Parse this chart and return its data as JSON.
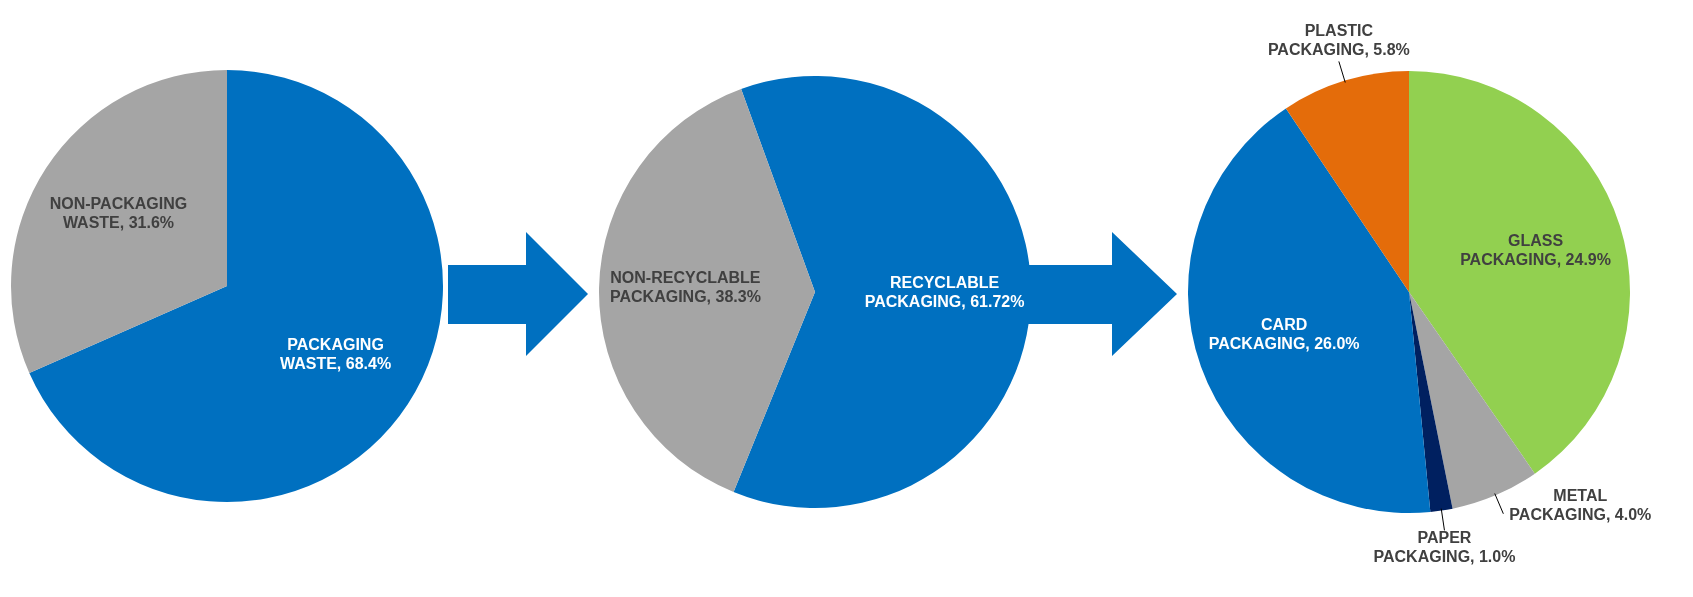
{
  "chart_data": [
    {
      "type": "pie",
      "categories": [
        "PACKAGING WASTE",
        "NON-PACKAGING WASTE"
      ],
      "values": [
        68.4,
        31.6
      ],
      "colors": [
        "#0070c0",
        "#a5a5a5"
      ],
      "value_labels": [
        "68.4%",
        "31.6%"
      ]
    },
    {
      "type": "pie",
      "categories": [
        "RECYCLABLE PACKAGING",
        "NON-RECYCLABLE PACKAGING"
      ],
      "values": [
        61.72,
        38.3
      ],
      "colors": [
        "#0070c0",
        "#a5a5a5"
      ],
      "value_labels": [
        "61.72%",
        "38.3%"
      ]
    },
    {
      "type": "pie",
      "categories": [
        "GLASS PACKAGING",
        "METAL PACKAGING",
        "PAPER PACKAGING",
        "CARD PACKAGING",
        "PLASTIC PACKAGING"
      ],
      "values": [
        24.9,
        4.0,
        1.0,
        26.0,
        5.8
      ],
      "colors": [
        "#92d050",
        "#a5a5a5",
        "#002060",
        "#0070c0",
        "#e46c0a"
      ],
      "value_labels": [
        "24.9%",
        "4.0%",
        "1.0%",
        "26.0%",
        "5.8%"
      ]
    }
  ]
}
